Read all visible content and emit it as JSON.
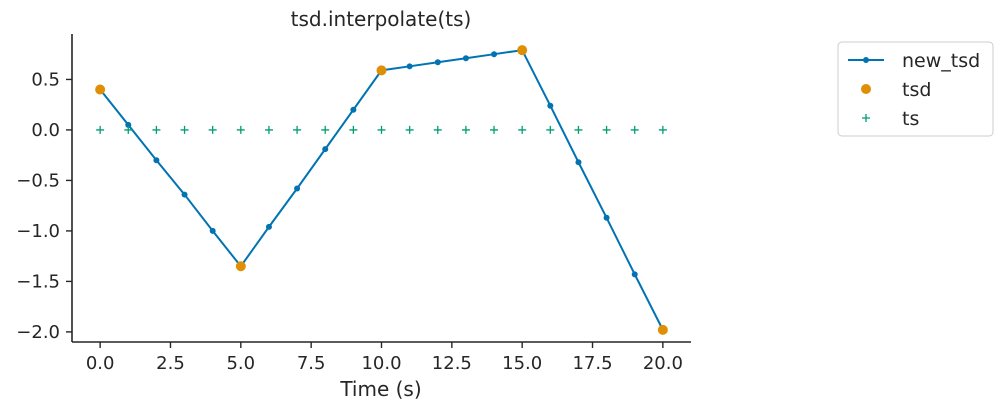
{
  "chart_data": {
    "type": "line",
    "title": "tsd.interpolate(ts)",
    "xlabel": "Time (s)",
    "ylabel": "",
    "xlim": [
      -1,
      21
    ],
    "ylim": [
      -2.1,
      0.95
    ],
    "x_ticks": [
      0,
      2.5,
      5,
      7.5,
      10,
      12.5,
      15,
      17.5,
      20
    ],
    "x_tick_labels": [
      "0.0",
      "2.5",
      "5.0",
      "7.5",
      "10.0",
      "12.5",
      "15.0",
      "17.5",
      "20.0"
    ],
    "y_ticks": [
      0.5,
      0,
      -0.5,
      -1,
      -1.5,
      -2
    ],
    "y_tick_labels": [
      "0.5",
      "0.0",
      "−0.5",
      "−1.0",
      "−1.5",
      "−2.0"
    ],
    "legend_position": "outside-top-right",
    "series": [
      {
        "name": "new_tsd",
        "style": "line-dot",
        "color": "#0173b2",
        "x": [
          0,
          1,
          2,
          3,
          4,
          5,
          6,
          7,
          8,
          9,
          10,
          11,
          12,
          13,
          14,
          15,
          16,
          17,
          18,
          19,
          20
        ],
        "y": [
          0.4,
          0.05,
          -0.3,
          -0.64,
          -1.0,
          -1.35,
          -0.96,
          -0.58,
          -0.19,
          0.2,
          0.59,
          0.63,
          0.67,
          0.71,
          0.75,
          0.79,
          0.24,
          -0.32,
          -0.87,
          -1.43,
          -1.98
        ]
      },
      {
        "name": "tsd",
        "style": "dot",
        "color": "#de8f05",
        "x": [
          0,
          5,
          10,
          15,
          20
        ],
        "y": [
          0.4,
          -1.35,
          0.59,
          0.79,
          -1.98
        ]
      },
      {
        "name": "ts",
        "style": "plus",
        "color": "#029e73",
        "x": [
          0,
          1,
          2,
          3,
          4,
          5,
          6,
          7,
          8,
          9,
          10,
          11,
          12,
          13,
          14,
          15,
          16,
          17,
          18,
          19,
          20
        ],
        "y": [
          0,
          0,
          0,
          0,
          0,
          0,
          0,
          0,
          0,
          0,
          0,
          0,
          0,
          0,
          0,
          0,
          0,
          0,
          0,
          0,
          0
        ]
      }
    ]
  }
}
